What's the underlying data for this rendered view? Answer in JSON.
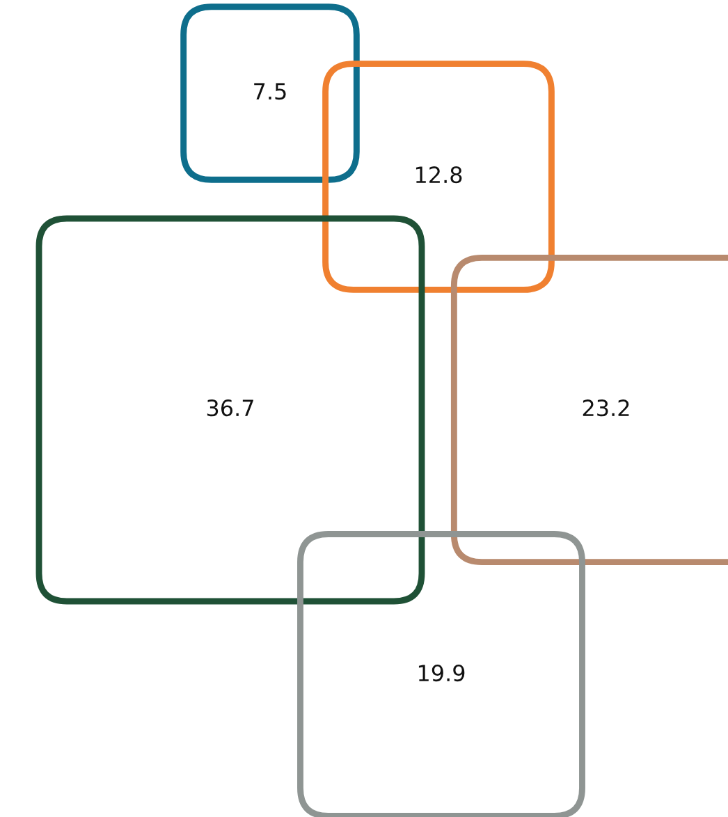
{
  "chart_data": {
    "type": "other",
    "categories": [
      null,
      null,
      null,
      null,
      null
    ],
    "values": [
      7.5,
      12.8,
      36.7,
      23.2,
      19.9
    ],
    "colors": [
      "#0e6e8c",
      "#f08030",
      "#1f5136",
      "#b88a6e",
      "#8f9593"
    ],
    "data_labels": true
  }
}
